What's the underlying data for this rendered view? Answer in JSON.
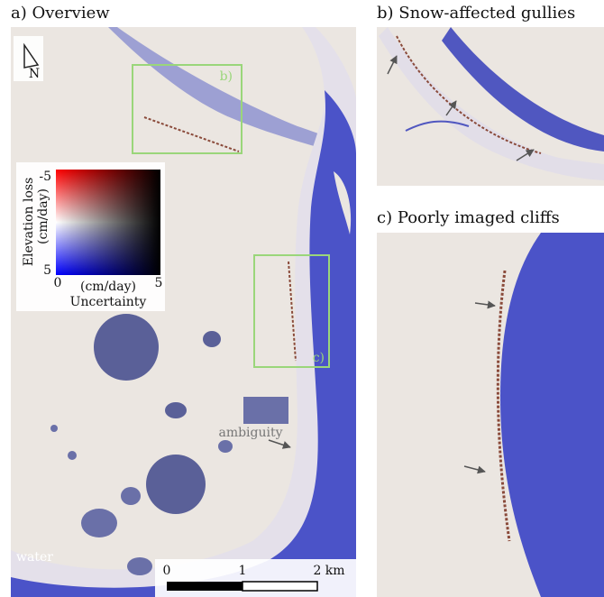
{
  "panels": [
    {
      "title": "a) Overview"
    },
    {
      "title": "b) Snow-affected gullies"
    },
    {
      "title": "c) Poorly imaged cliffs"
    }
  ],
  "overview": {
    "north": "N",
    "box_labels": [
      "b)",
      "c)"
    ],
    "annotation": "ambiguity",
    "water_label": "water"
  },
  "colorbar": {
    "y_label": "Elevation loss",
    "y_unit": "(cm/day)",
    "y_ticks": [
      "-5",
      "5"
    ],
    "x_ticks": [
      "0",
      "5"
    ],
    "x_unit": "(cm/day)",
    "x_label": "Uncertainty"
  },
  "scalebar": {
    "ticks": [
      "0",
      "1",
      "2 km"
    ]
  }
}
